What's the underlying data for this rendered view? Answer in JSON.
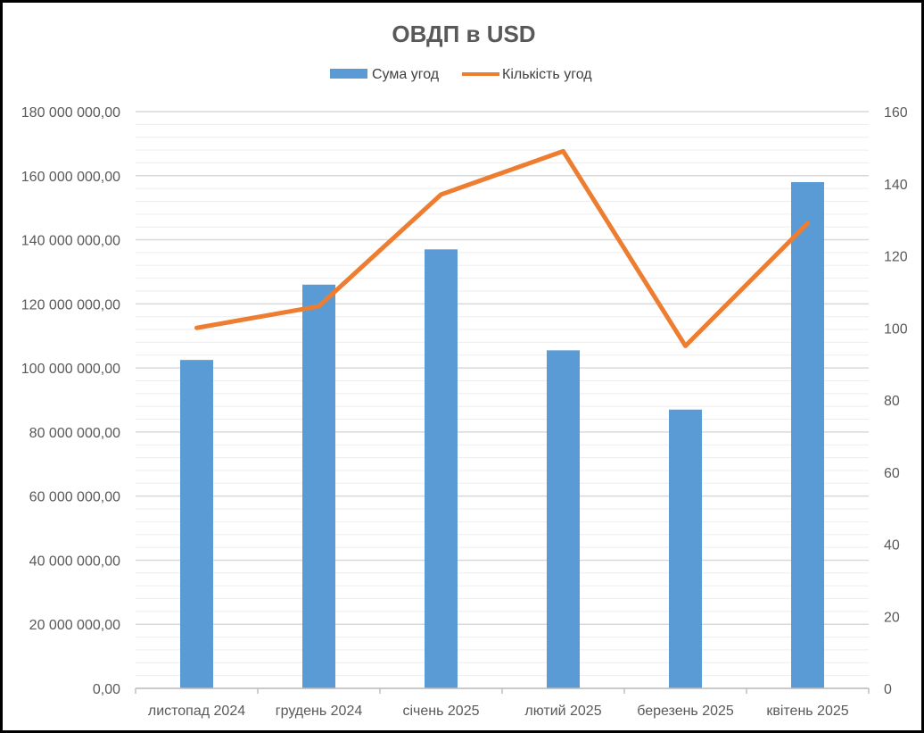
{
  "chart_data": {
    "type": "bar",
    "title": "ОВДП в USD",
    "categories": [
      "листопад 2024",
      "грудень 2024",
      "січень 2025",
      "лютий 2025",
      "березень 2025",
      "квітень 2025"
    ],
    "series": [
      {
        "name": "Сума угод",
        "type": "bar",
        "axis": "left",
        "color": "#5B9BD5",
        "values": [
          102500000,
          126000000,
          137000000,
          105500000,
          87000000,
          158000000
        ]
      },
      {
        "name": "Кількість угод",
        "type": "line",
        "axis": "right",
        "color": "#ED7D31",
        "values": [
          100,
          106,
          137,
          149,
          95,
          129
        ]
      }
    ],
    "y_left": {
      "ylim": [
        0,
        180000000
      ],
      "ticks": [
        0,
        20000000,
        40000000,
        60000000,
        80000000,
        100000000,
        120000000,
        140000000,
        160000000,
        180000000
      ],
      "tick_labels": [
        "0,00",
        "20 000 000,00",
        "40 000 000,00",
        "60 000 000,00",
        "80 000 000,00",
        "100 000 000,00",
        "120 000 000,00",
        "140 000 000,00",
        "160 000 000,00",
        "180 000 000,00"
      ]
    },
    "y_right": {
      "ylim": [
        0,
        160
      ],
      "ticks": [
        0,
        20,
        40,
        60,
        80,
        100,
        120,
        140,
        160
      ],
      "tick_labels": [
        "0",
        "20",
        "40",
        "60",
        "80",
        "100",
        "120",
        "140",
        "160"
      ]
    },
    "legend": "top",
    "grid": true,
    "xlabel": "",
    "ylabel": ""
  }
}
